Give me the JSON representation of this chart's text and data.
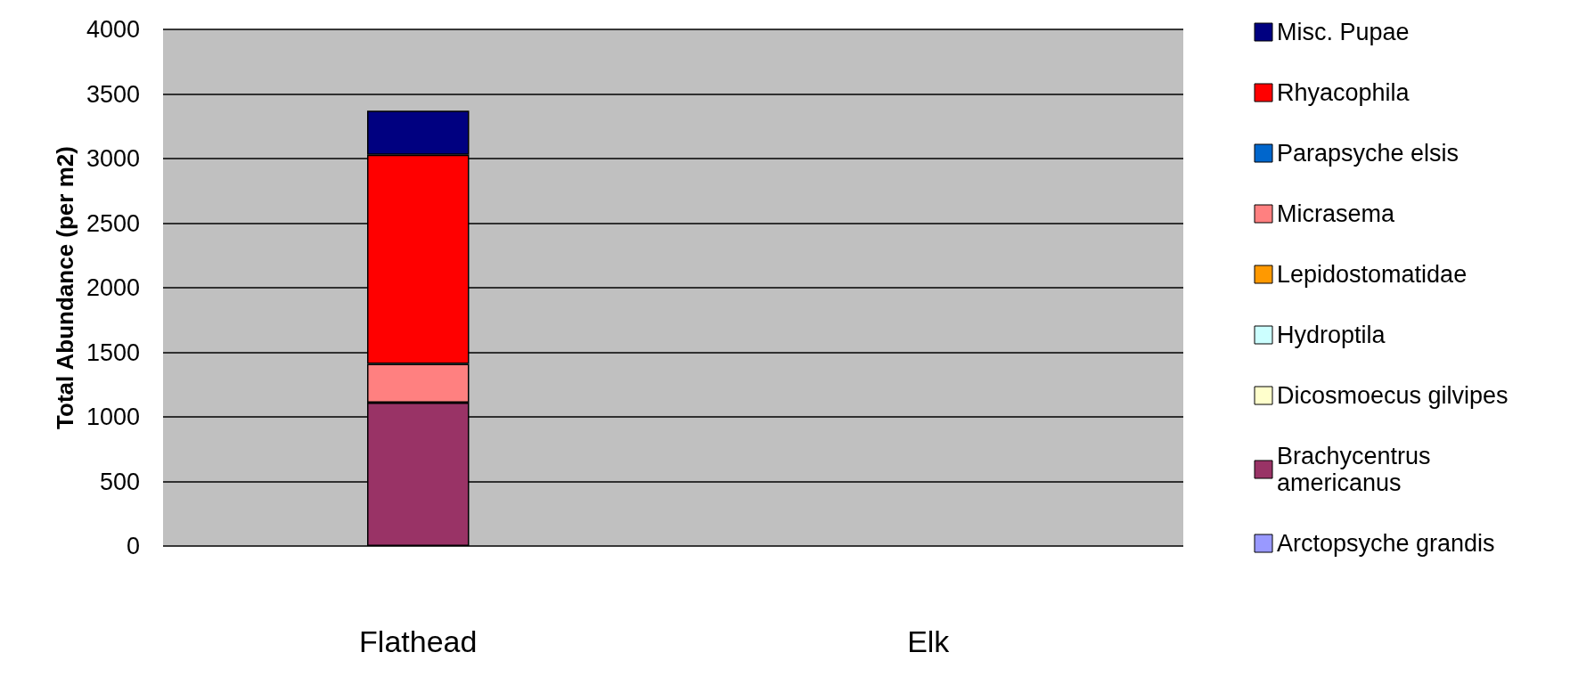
{
  "chart_data": {
    "type": "bar",
    "stacked": true,
    "ylabel": "Total Abundance (per m2)",
    "categories": [
      "Flathead",
      "Elk"
    ],
    "ylim": [
      0,
      4000
    ],
    "yticks": [
      0,
      500,
      1000,
      1500,
      2000,
      2500,
      3000,
      3500,
      4000
    ],
    "grid": "y",
    "legend": "right",
    "series": [
      {
        "name": "Arctopsyche grandis",
        "color": "#9999ff",
        "values": [
          0,
          0
        ]
      },
      {
        "name": "Brachycentrus americanus",
        "color": "#993366",
        "values": [
          1110,
          0
        ]
      },
      {
        "name": "Dicosmoecus gilvipes",
        "color": "#ffffcc",
        "values": [
          0,
          0
        ]
      },
      {
        "name": "Hydroptila",
        "color": "#ccffff",
        "values": [
          0,
          0
        ]
      },
      {
        "name": "Lepidostomatidae",
        "color": "#ff9900",
        "values": [
          0,
          0
        ]
      },
      {
        "name": "Micrasema",
        "color": "#ff8080",
        "values": [
          300,
          0
        ]
      },
      {
        "name": "Parapsyche elsis",
        "color": "#0066cc",
        "values": [
          0,
          0
        ]
      },
      {
        "name": "Rhyacophila",
        "color": "#ff0000",
        "values": [
          1620,
          0
        ]
      },
      {
        "name": "Misc. Pupae",
        "color": "#000080",
        "values": [
          340,
          0
        ]
      }
    ]
  }
}
